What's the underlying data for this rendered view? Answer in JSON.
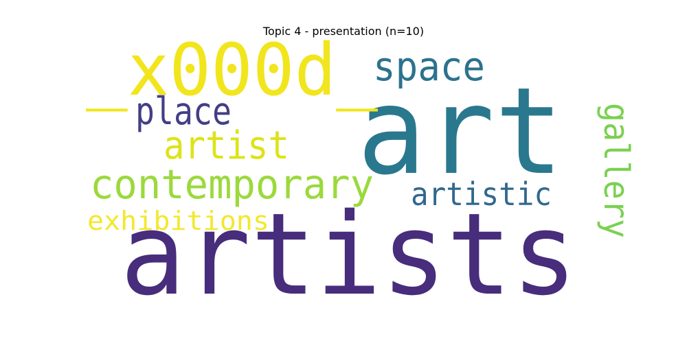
{
  "title": "Topic 4 - presentation (n=10)",
  "words": [
    {
      "key": "artists",
      "text": "artists",
      "color": "#472d7b"
    },
    {
      "key": "art",
      "text": "art",
      "color": "#2a788e"
    },
    {
      "key": "x000d",
      "text": "_x000d_",
      "color": "#f1e51d"
    },
    {
      "key": "space",
      "text": "space",
      "color": "#2c728e"
    },
    {
      "key": "place",
      "text": "place",
      "color": "#433e85"
    },
    {
      "key": "artist",
      "text": "artist",
      "color": "#dde318"
    },
    {
      "key": "contemporary",
      "text": "contemporary",
      "color": "#9bd93c"
    },
    {
      "key": "artistic",
      "text": "artistic",
      "color": "#31688e"
    },
    {
      "key": "gallery",
      "text": "gallery",
      "color": "#7ad151"
    },
    {
      "key": "exhibitions",
      "text": "exhibitions",
      "color": "#f3e82d"
    }
  ]
}
